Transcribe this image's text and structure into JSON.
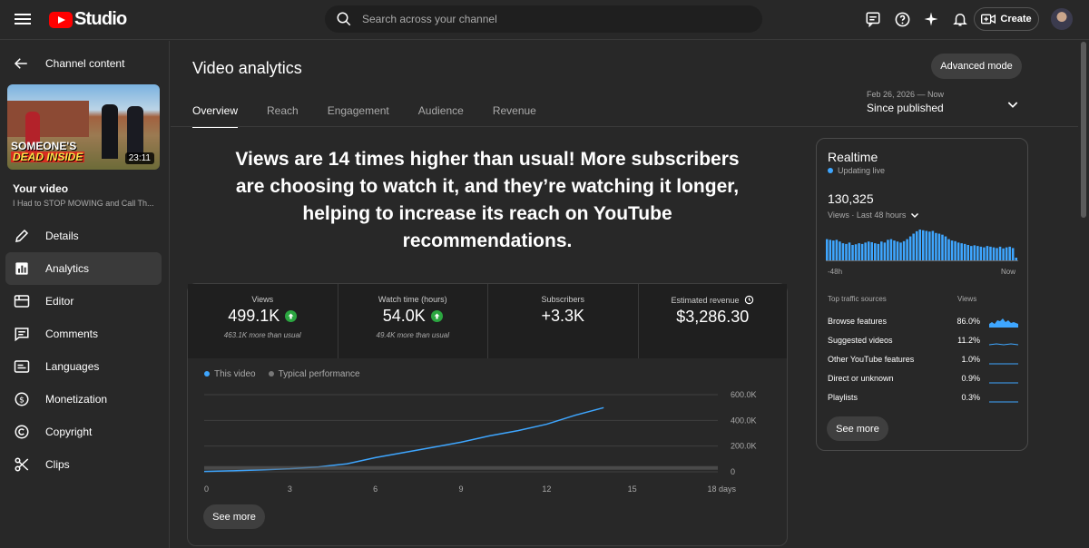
{
  "app": {
    "logo_text": "Studio",
    "brand_color": "#ff0000",
    "accent_color": "#3ea6ff",
    "up_color": "#2ba640"
  },
  "topbar": {
    "search_placeholder": "Search across your channel",
    "create_label": "Create",
    "icons": [
      "feedback-icon",
      "help-icon",
      "sparkle-icon",
      "bell-icon",
      "create-video-icon"
    ]
  },
  "sidebar": {
    "back_label": "Channel content",
    "thumbnail": {
      "caption_line1": "SOMEONE'S",
      "caption_line2": "DEAD INSIDE",
      "duration": "23:11"
    },
    "your_video_label": "Your video",
    "video_title": "I Had to STOP MOWING and Call Th...",
    "items": [
      {
        "label": "Details",
        "icon": "pencil-icon"
      },
      {
        "label": "Analytics",
        "icon": "analytics-icon",
        "active": true
      },
      {
        "label": "Editor",
        "icon": "editor-icon"
      },
      {
        "label": "Comments",
        "icon": "comments-icon"
      },
      {
        "label": "Languages",
        "icon": "languages-icon"
      },
      {
        "label": "Monetization",
        "icon": "dollar-icon"
      },
      {
        "label": "Copyright",
        "icon": "copyright-icon"
      },
      {
        "label": "Clips",
        "icon": "scissors-icon"
      }
    ]
  },
  "main": {
    "title": "Video analytics",
    "advanced_mode_label": "Advanced mode",
    "tabs": [
      {
        "label": "Overview",
        "active": true
      },
      {
        "label": "Reach"
      },
      {
        "label": "Engagement"
      },
      {
        "label": "Audience"
      },
      {
        "label": "Revenue"
      }
    ],
    "date_range_small": "Feb 26, 2026 — Now",
    "date_range_main": "Since published",
    "headline": "Views are 14 times higher than usual! More subscribers are choosing to watch it, and they’re watching it longer, helping to increase its reach on YouTube recommendations."
  },
  "stats": [
    {
      "label": "Views",
      "value": "499.1K",
      "up": true,
      "note": "463.1K more than usual"
    },
    {
      "label": "Watch time (hours)",
      "value": "54.0K",
      "up": true,
      "note": "49.4K more than usual"
    },
    {
      "label": "Subscribers",
      "value": "+3.3K",
      "up": false,
      "note": ""
    },
    {
      "label": "Estimated revenue",
      "value": "$3,286.30",
      "up": false,
      "note": "",
      "info_icon": "clock-icon"
    }
  ],
  "legend": {
    "this_video": "This video",
    "typical": "Typical performance"
  },
  "chart_data": {
    "type": "line",
    "x_tick_labels": [
      "0",
      "3",
      "6",
      "9",
      "12",
      "15",
      "18 days"
    ],
    "y_tick_labels": [
      "0",
      "200.0K",
      "400.0K",
      "600.0K"
    ],
    "ylim": [
      0,
      600000
    ],
    "xlim": [
      0,
      18
    ],
    "grid": true,
    "series": [
      {
        "name": "This video",
        "color": "#3ea6ff",
        "x": [
          0,
          1,
          2,
          3,
          4,
          5,
          6,
          7,
          8,
          9,
          10,
          11,
          12,
          13,
          14
        ],
        "y": [
          3000,
          8000,
          15000,
          24000,
          38000,
          62000,
          110000,
          150000,
          190000,
          230000,
          280000,
          320000,
          370000,
          440000,
          499100
        ]
      },
      {
        "name": "Typical performance",
        "color": "#606060",
        "x": [
          0,
          18
        ],
        "y": [
          30000,
          30000
        ]
      }
    ]
  },
  "see_more_label": "See more",
  "realtime": {
    "title": "Realtime",
    "live_label": "Updating live",
    "count": "130,325",
    "subtitle": "Views · Last 48 hours",
    "axis_left": "-48h",
    "axis_right": "Now",
    "bars": [
      62,
      60,
      58,
      60,
      55,
      50,
      48,
      52,
      45,
      47,
      50,
      48,
      52,
      55,
      53,
      50,
      48,
      55,
      52,
      60,
      62,
      58,
      55,
      52,
      56,
      62,
      70,
      78,
      85,
      90,
      88,
      86,
      84,
      86,
      80,
      78,
      75,
      70,
      62,
      58,
      56,
      52,
      50,
      48,
      45,
      42,
      44,
      42,
      40,
      38,
      42,
      40,
      38,
      36,
      40,
      35,
      38,
      40,
      36,
      8
    ],
    "traffic_header": "Top traffic sources",
    "traffic_views_header": "Views",
    "sources": [
      {
        "name": "Browse features",
        "pct": "86.0%"
      },
      {
        "name": "Suggested videos",
        "pct": "11.2%"
      },
      {
        "name": "Other YouTube features",
        "pct": "1.0%"
      },
      {
        "name": "Direct or unknown",
        "pct": "0.9%"
      },
      {
        "name": "Playlists",
        "pct": "0.3%"
      }
    ]
  }
}
